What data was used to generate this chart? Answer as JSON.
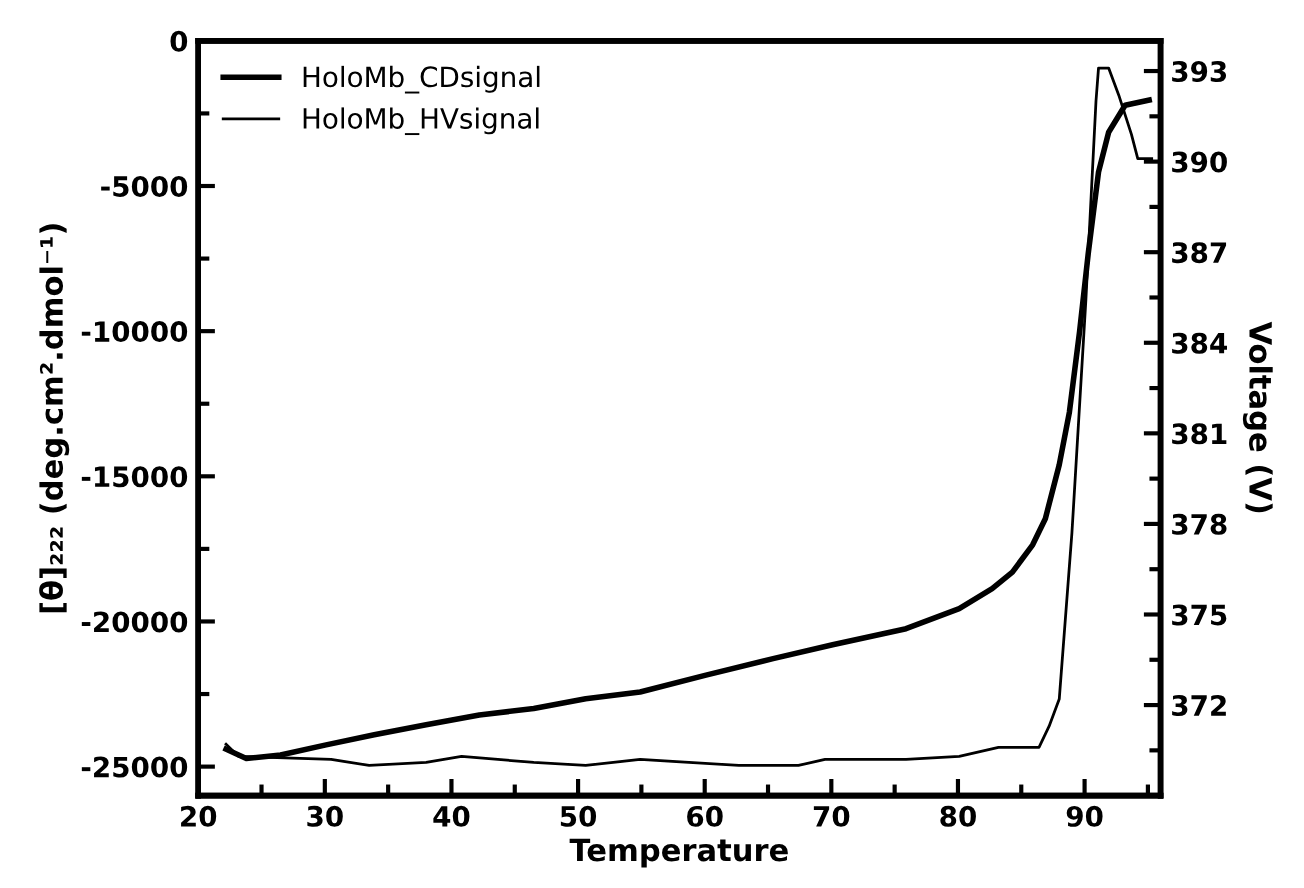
{
  "chart_data": {
    "type": "line",
    "xlabel": "Temperature",
    "ylabel": "[θ]₂₂₂ (deg.cm².dmol⁻¹)",
    "y2label": "Voltage (V)",
    "xlim": [
      20,
      96
    ],
    "ylim": [
      -26000,
      0
    ],
    "y2lim": [
      369,
      394
    ],
    "xticks": [
      20,
      {
        "value": 25,
        "label": null
      },
      30,
      {
        "value": 35,
        "label": null
      },
      40,
      {
        "value": 45,
        "label": null
      },
      50,
      {
        "value": 55,
        "label": null
      },
      60,
      {
        "value": 65,
        "label": null
      },
      70,
      {
        "value": 75,
        "label": null
      },
      80,
      {
        "value": 85,
        "label": null
      },
      90,
      {
        "value": 95,
        "label": null
      }
    ],
    "yticks": [
      -25000,
      {
        "value": -22500,
        "label": null
      },
      -20000,
      {
        "value": -17500,
        "label": null
      },
      -15000,
      {
        "value": -12500,
        "label": null
      },
      -10000,
      {
        "value": -7500,
        "label": null
      },
      -5000,
      {
        "value": -2500,
        "label": null
      },
      0
    ],
    "y2ticks": [
      {
        "value": 370.5,
        "label": null
      },
      372,
      {
        "value": 373.5,
        "label": null
      },
      375,
      {
        "value": 376.5,
        "label": null
      },
      378,
      {
        "value": 379.5,
        "label": null
      },
      381,
      {
        "value": 382.5,
        "label": null
      },
      384,
      {
        "value": 385.5,
        "label": null
      },
      387,
      {
        "value": 388.5,
        "label": null
      },
      390,
      {
        "value": 391.5,
        "label": null
      },
      393
    ],
    "legend": "top left",
    "grid": false,
    "marker": "none",
    "line_style": "solid",
    "series": [
      {
        "name": "HoloMb_CDsignal",
        "color": "#000000",
        "x": [
          22.2,
          23.8,
          26.5,
          30.1,
          33.9,
          38.0,
          42.2,
          46.5,
          50.6,
          54.9,
          60.1,
          65.4,
          70.1,
          75.9,
          80.1,
          82.7,
          84.3,
          85.9,
          86.9,
          88.0,
          88.8,
          89.6,
          90.3,
          91.1,
          91.9,
          93.2,
          95.1
        ],
        "values": [
          -24400,
          -24720,
          -24600,
          -24250,
          -23900,
          -23560,
          -23220,
          -23000,
          -22660,
          -22430,
          -21850,
          -21280,
          -20800,
          -20250,
          -19560,
          -18870,
          -18300,
          -17360,
          -16460,
          -14600,
          -12790,
          -10030,
          -7280,
          -4520,
          -3150,
          -2220,
          -2040
        ]
      },
      {
        "name": "HoloMb_HVsignal",
        "color": "#000000",
        "axis": "y2",
        "x": [
          22.2,
          23.2,
          30.5,
          33.5,
          38.0,
          40.8,
          46.5,
          50.6,
          54.9,
          62.7,
          67.4,
          69.5,
          75.9,
          80.1,
          83.2,
          86.4,
          87.2,
          88.0,
          89.0,
          90.1,
          90.9,
          91.1,
          91.9,
          92.7,
          93.7,
          94.2,
          95.3
        ],
        "values": [
          370.7,
          370.3,
          370.2,
          370.0,
          370.1,
          370.3,
          370.1,
          370.0,
          370.2,
          370.0,
          370.0,
          370.2,
          370.2,
          370.3,
          370.6,
          370.6,
          371.3,
          372.2,
          377.7,
          385.4,
          392.0,
          393.1,
          393.1,
          392.2,
          390.9,
          390.1,
          390.1
        ]
      }
    ]
  }
}
